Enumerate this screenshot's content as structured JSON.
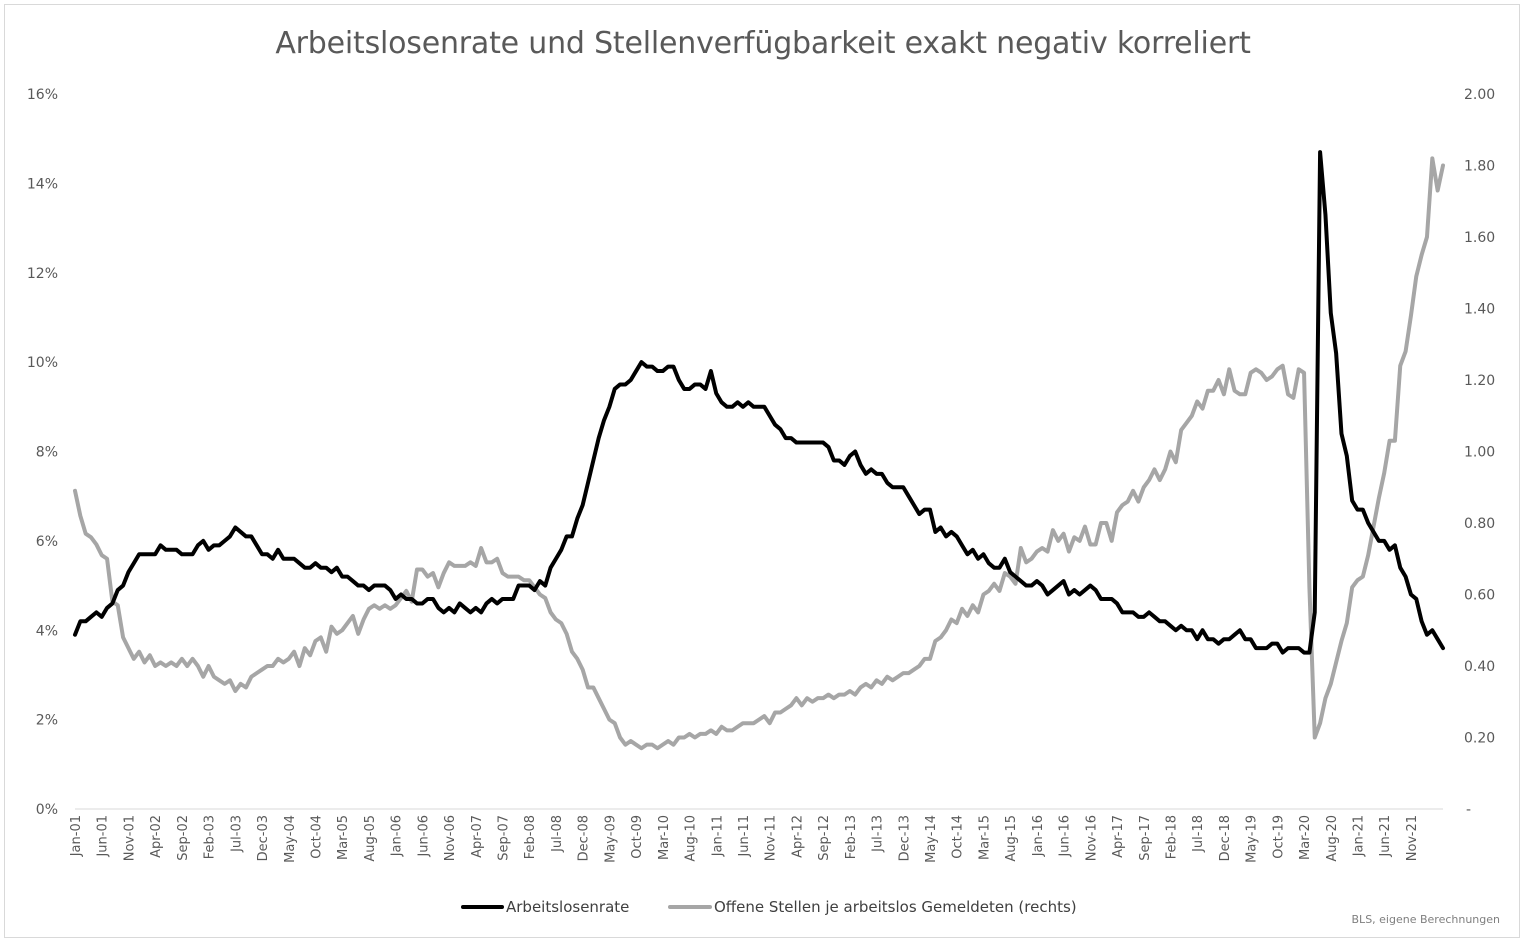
{
  "chart_data": {
    "type": "line",
    "title": "Arbeitslosenrate und Stellenverfügbarkeit exakt negativ korreliert",
    "source_note": "BLS, eigene Berechnungen",
    "y_left": {
      "range": [
        0,
        16
      ],
      "ticks": [
        "0%",
        "2%",
        "4%",
        "6%",
        "8%",
        "10%",
        "12%",
        "14%",
        "16%"
      ]
    },
    "y_right": {
      "range": [
        0,
        2.0
      ],
      "ticks": [
        "-",
        "0.20",
        "0.40",
        "0.60",
        "0.80",
        "1.00",
        "1.20",
        "1.40",
        "1.60",
        "1.80",
        "2.00"
      ]
    },
    "x_ticks": [
      "Jan-01",
      "Jun-01",
      "Nov-01",
      "Apr-02",
      "Sep-02",
      "Feb-03",
      "Jul-03",
      "Dec-03",
      "May-04",
      "Oct-04",
      "Mar-05",
      "Aug-05",
      "Jan-06",
      "Jun-06",
      "Nov-06",
      "Apr-07",
      "Sep-07",
      "Feb-08",
      "Jul-08",
      "Dec-08",
      "May-09",
      "Oct-09",
      "Mar-10",
      "Aug-10",
      "Jan-11",
      "Jun-11",
      "Nov-11",
      "Apr-12",
      "Sep-12",
      "Feb-13",
      "Jul-13",
      "Dec-13",
      "May-14",
      "Oct-14",
      "Mar-15",
      "Aug-15",
      "Jan-16",
      "Jun-16",
      "Nov-16",
      "Apr-17",
      "Sep-17",
      "Feb-18",
      "Jul-18",
      "Dec-18",
      "May-19",
      "Oct-19",
      "Mar-20",
      "Aug-20",
      "Jan-21",
      "Jun-21",
      "Nov-21"
    ],
    "x_start": "Jan-01",
    "x_step_months": 1,
    "legend_position": "bottom",
    "gridlines": false,
    "series": [
      {
        "name": "Arbeitslosenrate",
        "axis": "left",
        "color": "#000000",
        "unit": "%",
        "values": [
          3.9,
          4.2,
          4.2,
          4.3,
          4.4,
          4.3,
          4.5,
          4.6,
          4.9,
          5.0,
          5.3,
          5.5,
          5.7,
          5.7,
          5.7,
          5.7,
          5.9,
          5.8,
          5.8,
          5.8,
          5.7,
          5.7,
          5.7,
          5.9,
          6.0,
          5.8,
          5.9,
          5.9,
          6.0,
          6.1,
          6.3,
          6.2,
          6.1,
          6.1,
          5.9,
          5.7,
          5.7,
          5.6,
          5.8,
          5.6,
          5.6,
          5.6,
          5.5,
          5.4,
          5.4,
          5.5,
          5.4,
          5.4,
          5.3,
          5.4,
          5.2,
          5.2,
          5.1,
          5.0,
          5.0,
          4.9,
          5.0,
          5.0,
          5.0,
          4.9,
          4.7,
          4.8,
          4.7,
          4.7,
          4.6,
          4.6,
          4.7,
          4.7,
          4.5,
          4.4,
          4.5,
          4.4,
          4.6,
          4.5,
          4.4,
          4.5,
          4.4,
          4.6,
          4.7,
          4.6,
          4.7,
          4.7,
          4.7,
          5.0,
          5.0,
          5.0,
          4.9,
          5.1,
          5.0,
          5.4,
          5.6,
          5.8,
          6.1,
          6.1,
          6.5,
          6.8,
          7.3,
          7.8,
          8.3,
          8.7,
          9.0,
          9.4,
          9.5,
          9.5,
          9.6,
          9.8,
          10.0,
          9.9,
          9.9,
          9.8,
          9.8,
          9.9,
          9.9,
          9.6,
          9.4,
          9.4,
          9.5,
          9.5,
          9.4,
          9.8,
          9.3,
          9.1,
          9.0,
          9.0,
          9.1,
          9.0,
          9.1,
          9.0,
          9.0,
          9.0,
          8.8,
          8.6,
          8.5,
          8.3,
          8.3,
          8.2,
          8.2,
          8.2,
          8.2,
          8.2,
          8.2,
          8.1,
          7.8,
          7.8,
          7.7,
          7.9,
          8.0,
          7.7,
          7.5,
          7.6,
          7.5,
          7.5,
          7.3,
          7.2,
          7.2,
          7.2,
          7.0,
          6.8,
          6.6,
          6.7,
          6.7,
          6.2,
          6.3,
          6.1,
          6.2,
          6.1,
          5.9,
          5.7,
          5.8,
          5.6,
          5.7,
          5.5,
          5.4,
          5.4,
          5.6,
          5.3,
          5.2,
          5.1,
          5.0,
          5.0,
          5.1,
          5.0,
          4.8,
          4.9,
          5.0,
          5.1,
          4.8,
          4.9,
          4.8,
          4.9,
          5.0,
          4.9,
          4.7,
          4.7,
          4.7,
          4.6,
          4.4,
          4.4,
          4.4,
          4.3,
          4.3,
          4.4,
          4.3,
          4.2,
          4.2,
          4.1,
          4.0,
          4.1,
          4.0,
          4.0,
          3.8,
          4.0,
          3.8,
          3.8,
          3.7,
          3.8,
          3.8,
          3.9,
          4.0,
          3.8,
          3.8,
          3.6,
          3.6,
          3.6,
          3.7,
          3.7,
          3.5,
          3.6,
          3.6,
          3.6,
          3.5,
          3.5,
          4.4,
          14.7,
          13.3,
          11.1,
          10.2,
          8.4,
          7.9,
          6.9,
          6.7,
          6.7,
          6.4,
          6.2,
          6.0,
          6.0,
          5.8,
          5.9,
          5.4,
          5.2,
          4.8,
          4.7,
          4.2,
          3.9,
          4.0,
          3.8,
          3.6
        ]
      },
      {
        "name": "Offene Stellen je arbeitslos Gemeldeten (rechts)",
        "axis": "right",
        "color": "#a6a6a6",
        "unit": "",
        "values": [
          0.89,
          0.82,
          0.77,
          0.76,
          0.74,
          0.71,
          0.7,
          0.58,
          0.57,
          0.48,
          0.45,
          0.42,
          0.44,
          0.41,
          0.43,
          0.4,
          0.41,
          0.4,
          0.41,
          0.4,
          0.42,
          0.4,
          0.42,
          0.4,
          0.37,
          0.4,
          0.37,
          0.36,
          0.35,
          0.36,
          0.33,
          0.35,
          0.34,
          0.37,
          0.38,
          0.39,
          0.4,
          0.4,
          0.42,
          0.41,
          0.42,
          0.44,
          0.4,
          0.45,
          0.43,
          0.47,
          0.48,
          0.44,
          0.51,
          0.49,
          0.5,
          0.52,
          0.54,
          0.49,
          0.53,
          0.56,
          0.57,
          0.56,
          0.57,
          0.56,
          0.57,
          0.59,
          0.61,
          0.58,
          0.67,
          0.67,
          0.65,
          0.66,
          0.62,
          0.66,
          0.69,
          0.68,
          0.68,
          0.68,
          0.69,
          0.68,
          0.73,
          0.69,
          0.69,
          0.7,
          0.66,
          0.65,
          0.65,
          0.65,
          0.64,
          0.64,
          0.62,
          0.6,
          0.59,
          0.55,
          0.53,
          0.52,
          0.49,
          0.44,
          0.42,
          0.39,
          0.34,
          0.34,
          0.31,
          0.28,
          0.25,
          0.24,
          0.2,
          0.18,
          0.19,
          0.18,
          0.17,
          0.18,
          0.18,
          0.17,
          0.18,
          0.19,
          0.18,
          0.2,
          0.2,
          0.21,
          0.2,
          0.21,
          0.21,
          0.22,
          0.21,
          0.23,
          0.22,
          0.22,
          0.23,
          0.24,
          0.24,
          0.24,
          0.25,
          0.26,
          0.24,
          0.27,
          0.27,
          0.28,
          0.29,
          0.31,
          0.29,
          0.31,
          0.3,
          0.31,
          0.31,
          0.32,
          0.31,
          0.32,
          0.32,
          0.33,
          0.32,
          0.34,
          0.35,
          0.34,
          0.36,
          0.35,
          0.37,
          0.36,
          0.37,
          0.38,
          0.38,
          0.39,
          0.4,
          0.42,
          0.42,
          0.47,
          0.48,
          0.5,
          0.53,
          0.52,
          0.56,
          0.54,
          0.57,
          0.55,
          0.6,
          0.61,
          0.63,
          0.61,
          0.66,
          0.65,
          0.63,
          0.73,
          0.69,
          0.7,
          0.72,
          0.73,
          0.72,
          0.78,
          0.75,
          0.77,
          0.72,
          0.76,
          0.75,
          0.79,
          0.74,
          0.74,
          0.8,
          0.8,
          0.75,
          0.83,
          0.85,
          0.86,
          0.89,
          0.86,
          0.9,
          0.92,
          0.95,
          0.92,
          0.95,
          1.0,
          0.97,
          1.06,
          1.08,
          1.1,
          1.14,
          1.12,
          1.17,
          1.17,
          1.2,
          1.16,
          1.23,
          1.17,
          1.16,
          1.16,
          1.22,
          1.23,
          1.22,
          1.2,
          1.21,
          1.23,
          1.24,
          1.16,
          1.15,
          1.23,
          1.22,
          0.62,
          0.2,
          0.24,
          0.31,
          0.35,
          0.41,
          0.47,
          0.52,
          0.62,
          0.64,
          0.65,
          0.71,
          0.79,
          0.87,
          0.94,
          1.03,
          1.03,
          1.24,
          1.28,
          1.38,
          1.49,
          1.55,
          1.6,
          1.82,
          1.73,
          1.8
        ]
      }
    ]
  }
}
